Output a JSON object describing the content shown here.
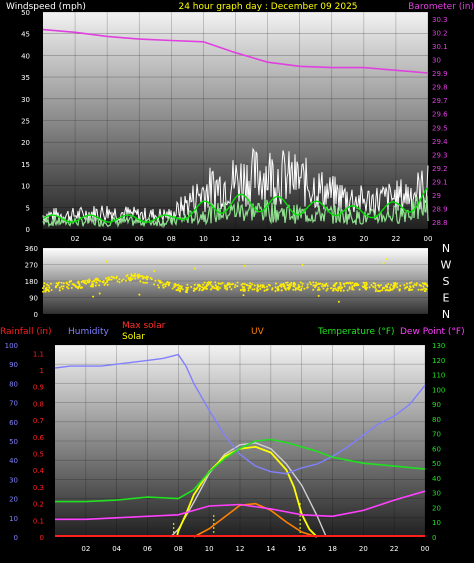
{
  "chart_data": [
    {
      "type": "line",
      "panel": "wind-barometer",
      "title": "24 hour graph day : December 09 2025",
      "left_axis": {
        "label": "Windspeed (mph)",
        "ticks": [
          0,
          5,
          10,
          15,
          20,
          25,
          30,
          35,
          40,
          45,
          50
        ],
        "ylim": [
          0,
          50
        ]
      },
      "right_axis": {
        "label": "Barometer (in)",
        "ticks": [
          28.8,
          28.9,
          29,
          29.1,
          29.2,
          29.3,
          29.4,
          29.5,
          29.6,
          29.7,
          29.8,
          29.9,
          30,
          30.1,
          30.2,
          30.3
        ],
        "ylim": [
          28.75,
          30.35
        ]
      },
      "x_ticks": [
        "02",
        "04",
        "06",
        "08",
        "10",
        "12",
        "14",
        "16",
        "18",
        "20",
        "22",
        "00"
      ],
      "grid": true,
      "colors": {
        "barometer": "#e040e0",
        "gust": "#ffffff",
        "wind": "#00e000",
        "avg": "#90e090"
      },
      "series": [
        {
          "name": "Barometer (in)",
          "axis": "right",
          "x": [
            0,
            2,
            4,
            6,
            8,
            10,
            12,
            14,
            16,
            18,
            20,
            22,
            24
          ],
          "values": [
            30.22,
            30.2,
            30.17,
            30.15,
            30.14,
            30.13,
            30.05,
            29.98,
            29.95,
            29.94,
            29.94,
            29.92,
            29.9
          ]
        },
        {
          "axis": "left",
          "x": [
            0,
            2,
            4,
            6,
            8,
            10,
            12,
            14,
            16,
            18,
            20,
            22,
            24
          ],
          "values": [
            4,
            4,
            5,
            4,
            4,
            11,
            14,
            16,
            14,
            10,
            8,
            9,
            12
          ]
        },
        {
          "axis": "left",
          "x": [
            0,
            2,
            4,
            6,
            8,
            10,
            12,
            14,
            16,
            18,
            20,
            22,
            24
          ],
          "values": [
            2,
            2,
            2,
            2,
            2,
            4,
            5,
            5,
            4,
            4,
            3,
            4,
            6
          ]
        }
      ]
    },
    {
      "type": "scatter",
      "panel": "wind-direction",
      "y_ticks": [
        0,
        90,
        180,
        270,
        360
      ],
      "ylim": [
        0,
        360
      ],
      "direction_labels": [
        "N",
        "W",
        "S",
        "E",
        "N"
      ],
      "color": "#ffee00",
      "x": [
        0,
        1,
        2,
        3,
        4,
        5,
        6,
        7,
        8,
        9,
        10,
        11,
        12,
        13,
        14,
        15,
        16,
        17,
        18,
        19,
        20,
        21,
        22,
        23,
        24
      ],
      "values": [
        140,
        150,
        160,
        170,
        180,
        190,
        200,
        170,
        150,
        140,
        150,
        155,
        150,
        145,
        140,
        150,
        150,
        155,
        145,
        150,
        150,
        145,
        150,
        150,
        145
      ]
    },
    {
      "type": "line",
      "panel": "weather",
      "legend": [
        "Rainfall (in)",
        "Humidity",
        "Max solar",
        "Solar",
        "UV",
        "Temperature (°F)",
        "Dew Point (°F)"
      ],
      "left_axis_ticks": [
        0,
        10,
        20,
        30,
        40,
        50,
        60,
        70,
        80,
        90,
        100
      ],
      "rain_axis_ticks": [
        0,
        0.1,
        0.2,
        0.3,
        0.4,
        0.5,
        0.6,
        0.7,
        0.8,
        0.9,
        1,
        1.1
      ],
      "right_axis_ticks": [
        0,
        10,
        20,
        30,
        40,
        50,
        60,
        70,
        80,
        90,
        100,
        110,
        120,
        130
      ],
      "x_ticks": [
        "02",
        "04",
        "06",
        "08",
        "10",
        "12",
        "14",
        "16",
        "18",
        "20",
        "22",
        "00"
      ],
      "grid": true,
      "colors": {
        "rain": "#ff2020",
        "humidity": "#8080ff",
        "max_solar": "#ff3030",
        "solar": "#ffff00",
        "uv": "#ff8000",
        "temperature": "#20e020",
        "dewpoint": "#ff40ff"
      },
      "series": [
        {
          "name": "Humidity",
          "axis": "left",
          "x": [
            0,
            1,
            2,
            3,
            4,
            5,
            6,
            7,
            8,
            8.5,
            9,
            10,
            11,
            12,
            13,
            14,
            15,
            16,
            17,
            18,
            19,
            20,
            21,
            22,
            23,
            24
          ],
          "values": [
            88,
            89,
            89,
            89,
            90,
            91,
            92,
            93,
            95,
            89,
            80,
            66,
            53,
            43,
            37,
            34,
            33,
            36,
            38,
            42,
            47,
            53,
            59,
            63,
            69,
            79
          ]
        },
        {
          "name": "Temperature (°F)",
          "axis": "right",
          "x": [
            0,
            2,
            4,
            6,
            8,
            9,
            10,
            11,
            12,
            13,
            14,
            15,
            16,
            17,
            18,
            20,
            22,
            24
          ],
          "values": [
            24,
            24,
            25,
            27,
            26,
            32,
            44,
            53,
            60,
            65,
            66,
            64,
            61,
            58,
            54,
            50,
            48,
            46
          ]
        },
        {
          "name": "Dew Point (°F)",
          "axis": "right",
          "x": [
            0,
            2,
            4,
            6,
            8,
            10,
            12,
            14,
            16,
            18,
            20,
            22,
            24
          ],
          "values": [
            12,
            12,
            13,
            14,
            15,
            21,
            22,
            19,
            15,
            14,
            18,
            25,
            31
          ]
        },
        {
          "name": "Max solar",
          "axis": "left",
          "x": [
            7.5,
            8,
            9,
            10,
            11,
            12,
            13,
            14,
            15,
            16,
            17,
            17.6
          ],
          "values": [
            0,
            4,
            18,
            33,
            43,
            48,
            49,
            46,
            38,
            27,
            11,
            0
          ]
        },
        {
          "name": "Solar",
          "axis": "left",
          "x": [
            7.9,
            8,
            8.5,
            9,
            10,
            11,
            12,
            13,
            14,
            15,
            15.5,
            16,
            16.5,
            17
          ],
          "values": [
            0,
            3,
            12,
            22,
            34,
            42,
            46,
            47,
            44,
            35,
            26,
            12,
            4,
            0
          ]
        },
        {
          "name": "UV",
          "axis": "rain",
          "x": [
            9,
            10,
            11,
            12,
            13,
            14,
            15,
            16,
            17
          ],
          "values": [
            0,
            0.05,
            0.12,
            0.19,
            0.2,
            0.16,
            0.09,
            0.03,
            0
          ]
        }
      ]
    }
  ]
}
